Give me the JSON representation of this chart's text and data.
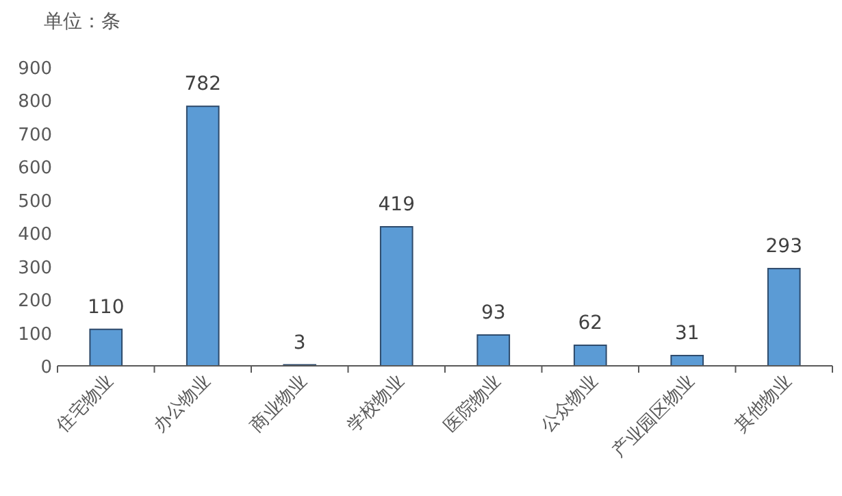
{
  "chart_data": {
    "type": "bar",
    "ylabel": "单位：条",
    "categories": [
      "住宅物业",
      "办公物业",
      "商业物业",
      "学校物业",
      "医院物业",
      "公众物业",
      "产业园区物业",
      "其他物业"
    ],
    "values": [
      110,
      782,
      3,
      419,
      93,
      62,
      31,
      293
    ],
    "color": "#5b9bd5",
    "ylim": [
      0,
      900
    ],
    "yticks": [
      0,
      100,
      200,
      300,
      400,
      500,
      600,
      700,
      800,
      900
    ],
    "data_labels": true
  }
}
